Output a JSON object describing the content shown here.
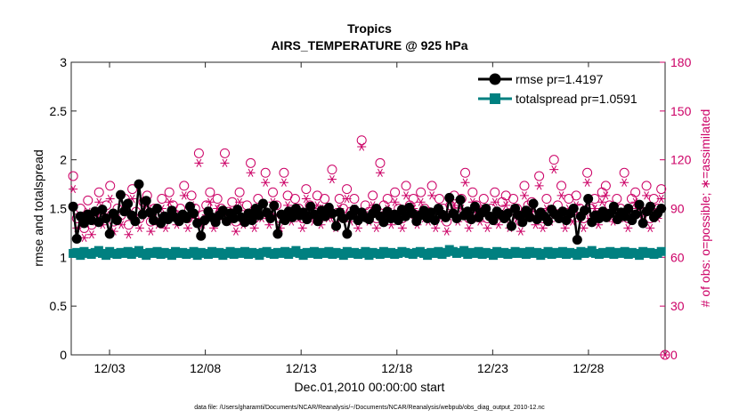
{
  "chart_data": {
    "type": "line",
    "title": "Tropics",
    "subtitle": "AIRS_TEMPERATURE @ 925 hPa",
    "xlabel": "Dec.01,2010 00:00:00 start",
    "ylabel": "rmse and totalspread",
    "ylabel_right": "# of obs: o=possible; ∗=assimilated",
    "footer": "data file: /Users/gharamti/Documents/NCAR/Reanalysis/~/Documents/NCAR/Reanalysis/webpub/obs_diag_output_2010-12.nc",
    "xlim": [
      0,
      31
    ],
    "ylim": [
      0,
      3
    ],
    "ylim_right": [
      0,
      180
    ],
    "x_ticks": [
      {
        "x": 2,
        "label": "12/03"
      },
      {
        "x": 7,
        "label": "12/08"
      },
      {
        "x": 12,
        "label": "12/13"
      },
      {
        "x": 17,
        "label": "12/18"
      },
      {
        "x": 22,
        "label": "12/23"
      },
      {
        "x": 27,
        "label": "12/28"
      }
    ],
    "y_ticks": [
      "0",
      "0.5",
      "1",
      "1.5",
      "2",
      "2.5",
      "3"
    ],
    "y_ticks_right": [
      "0",
      "30",
      "60",
      "90",
      "120",
      "150",
      "180"
    ],
    "colors": {
      "rmse": "#000000",
      "totalspread": "#008080",
      "obs": "#cc0066"
    },
    "legend": [
      {
        "label": "rmse pr=1.4197",
        "series": "rmse"
      },
      {
        "label": "totalspread pr=1.0591",
        "series": "totalspread"
      }
    ],
    "legend_position": "top-right",
    "series": [
      {
        "name": "rmse",
        "axis": "left",
        "values": [
          1.52,
          1.19,
          1.42,
          1.35,
          1.44,
          1.38,
          1.47,
          1.36,
          1.49,
          1.4,
          1.24,
          1.45,
          1.38,
          1.64,
          1.47,
          1.55,
          1.43,
          1.37,
          1.75,
          1.44,
          1.58,
          1.46,
          1.38,
          1.5,
          1.35,
          1.42,
          1.39,
          1.48,
          1.41,
          1.37,
          1.44,
          1.4,
          1.52,
          1.45,
          1.35,
          1.22,
          1.38,
          1.47,
          1.41,
          1.36,
          1.43,
          1.48,
          1.37,
          1.45,
          1.4,
          1.49,
          1.41,
          1.36,
          1.45,
          1.38,
          1.5,
          1.43,
          1.55,
          1.46,
          1.4,
          1.53,
          1.24,
          1.44,
          1.38,
          1.47,
          1.41,
          1.5,
          1.43,
          1.46,
          1.39,
          1.52,
          1.44,
          1.37,
          1.48,
          1.42,
          1.51,
          1.45,
          1.32,
          1.46,
          1.4,
          1.24,
          1.43,
          1.49,
          1.38,
          1.46,
          1.41,
          1.39,
          1.45,
          1.5,
          1.42,
          1.36,
          1.47,
          1.4,
          1.44,
          1.38,
          1.49,
          1.42,
          1.51,
          1.45,
          1.37,
          1.43,
          1.48,
          1.4,
          1.46,
          1.38,
          1.5,
          1.44,
          1.41,
          1.61,
          1.45,
          1.4,
          1.59,
          1.43,
          1.47,
          1.39,
          1.52,
          1.41,
          1.46,
          1.5,
          1.42,
          1.38,
          1.47,
          1.44,
          1.4,
          1.45,
          1.32,
          1.5,
          1.43,
          1.36,
          1.48,
          1.41,
          1.55,
          1.39,
          1.46,
          1.42,
          1.37,
          1.49,
          1.44,
          1.4,
          1.47,
          1.38,
          1.45,
          1.5,
          1.18,
          1.42,
          1.48,
          1.6,
          1.36,
          1.43,
          1.4,
          1.47,
          1.41,
          1.45,
          1.52,
          1.39,
          1.46,
          1.42,
          1.5,
          1.38,
          1.44,
          1.54,
          1.35,
          1.47,
          1.52,
          1.41,
          1.45,
          1.5
        ]
      },
      {
        "name": "totalspread",
        "axis": "left",
        "values": [
          1.04,
          1.05,
          1.02,
          1.06,
          1.04,
          1.03,
          1.05,
          1.07,
          1.04,
          1.02,
          1.06,
          1.04,
          1.03,
          1.05,
          1.04,
          1.06,
          1.03,
          1.05,
          1.07,
          1.04,
          1.02,
          1.05,
          1.04,
          1.06,
          1.03,
          1.05,
          1.04,
          1.02,
          1.06,
          1.04,
          1.05,
          1.03,
          1.04,
          1.06,
          1.02,
          1.05,
          1.04,
          1.03,
          1.06,
          1.04,
          1.05,
          1.02,
          1.04,
          1.06,
          1.03,
          1.05,
          1.04,
          1.06,
          1.03,
          1.05,
          1.04,
          1.02,
          1.05,
          1.06,
          1.04,
          1.03,
          1.05,
          1.04,
          1.06,
          1.03,
          1.05,
          1.07,
          1.04,
          1.02,
          1.05,
          1.04,
          1.06,
          1.03,
          1.05,
          1.04,
          1.06,
          1.03,
          1.05,
          1.04,
          1.02,
          1.06,
          1.04,
          1.05,
          1.03,
          1.04,
          1.06,
          1.02,
          1.05,
          1.04,
          1.03,
          1.06,
          1.04,
          1.05,
          1.03,
          1.04,
          1.06,
          1.05,
          1.04,
          1.03,
          1.05,
          1.06,
          1.04,
          1.02,
          1.05,
          1.04,
          1.06,
          1.03,
          1.05,
          1.08,
          1.06,
          1.04,
          1.05,
          1.07,
          1.03,
          1.05,
          1.04,
          1.06,
          1.03,
          1.05,
          1.04,
          1.02,
          1.06,
          1.04,
          1.05,
          1.03,
          1.04,
          1.06,
          1.04,
          1.05,
          1.03,
          1.06,
          1.04,
          1.05,
          1.02,
          1.04,
          1.06,
          1.03,
          1.05,
          1.04,
          1.06,
          1.03,
          1.05,
          1.04,
          1.02,
          1.06,
          1.04,
          1.05,
          1.07,
          1.04,
          1.03,
          1.05,
          1.04,
          1.06,
          1.03,
          1.05,
          1.04,
          1.06,
          1.03,
          1.05,
          1.04,
          1.02,
          1.06,
          1.04,
          1.05,
          1.03,
          1.04,
          1.06
        ]
      },
      {
        "name": "obs_possible",
        "axis": "right",
        "marker": "circle",
        "values": [
          110,
          84,
          90,
          78,
          95,
          80,
          88,
          100,
          85,
          92,
          104,
          82,
          90,
          86,
          96,
          80,
          102,
          88,
          84,
          94,
          98,
          82,
          90,
          86,
          96,
          84,
          100,
          92,
          86,
          90,
          104,
          84,
          98,
          90,
          124,
          86,
          92,
          100,
          84,
          96,
          90,
          124,
          88,
          94,
          82,
          100,
          86,
          92,
          118,
          84,
          96,
          90,
          112,
          86,
          100,
          92,
          84,
          112,
          98,
          88,
          96,
          90,
          84,
          102,
          92,
          88,
          98,
          86,
          96,
          90,
          114,
          84,
          96,
          90,
          102,
          88,
          96,
          84,
          132,
          92,
          88,
          98,
          84,
          118,
          92,
          96,
          86,
          100,
          90,
          84,
          104,
          92,
          96,
          86,
          100,
          90,
          88,
          104,
          84,
          96,
          90,
          82,
          92,
          98,
          88,
          96,
          112,
          84,
          100,
          92,
          88,
          96,
          84,
          90,
          100,
          86,
          94,
          98,
          84,
          96,
          90,
          82,
          104,
          92,
          94,
          86,
          110,
          84,
          96,
          88,
          120,
          92,
          104,
          84,
          96,
          88,
          98,
          90,
          84,
          112,
          90,
          96,
          86,
          100,
          104,
          92,
          88,
          96,
          90,
          112,
          84,
          96,
          100,
          92,
          88,
          104,
          84,
          96,
          90,
          102
        ]
      },
      {
        "name": "obs_assimilated",
        "axis": "right",
        "marker": "asterisk",
        "values": [
          102,
          78,
          84,
          72,
          88,
          74,
          82,
          94,
          80,
          86,
          96,
          76,
          84,
          80,
          90,
          74,
          96,
          82,
          78,
          88,
          92,
          76,
          84,
          80,
          90,
          78,
          94,
          86,
          80,
          84,
          98,
          78,
          92,
          84,
          118,
          80,
          86,
          94,
          78,
          90,
          84,
          118,
          82,
          88,
          76,
          94,
          80,
          86,
          112,
          78,
          90,
          84,
          106,
          80,
          94,
          86,
          78,
          106,
          92,
          82,
          90,
          84,
          78,
          96,
          86,
          82,
          92,
          80,
          90,
          84,
          108,
          78,
          90,
          84,
          96,
          82,
          90,
          78,
          128,
          86,
          82,
          92,
          78,
          112,
          86,
          90,
          80,
          94,
          84,
          78,
          98,
          86,
          90,
          80,
          94,
          84,
          82,
          98,
          78,
          90,
          84,
          76,
          86,
          92,
          82,
          90,
          106,
          78,
          94,
          86,
          82,
          90,
          78,
          84,
          94,
          80,
          88,
          92,
          78,
          90,
          84,
          76,
          98,
          86,
          88,
          80,
          104,
          78,
          90,
          82,
          114,
          86,
          98,
          78,
          90,
          82,
          92,
          84,
          78,
          106,
          84,
          90,
          80,
          94,
          98,
          86,
          82,
          90,
          84,
          106,
          78,
          90,
          94,
          86,
          82,
          98,
          78,
          90,
          84,
          96
        ]
      }
    ]
  }
}
